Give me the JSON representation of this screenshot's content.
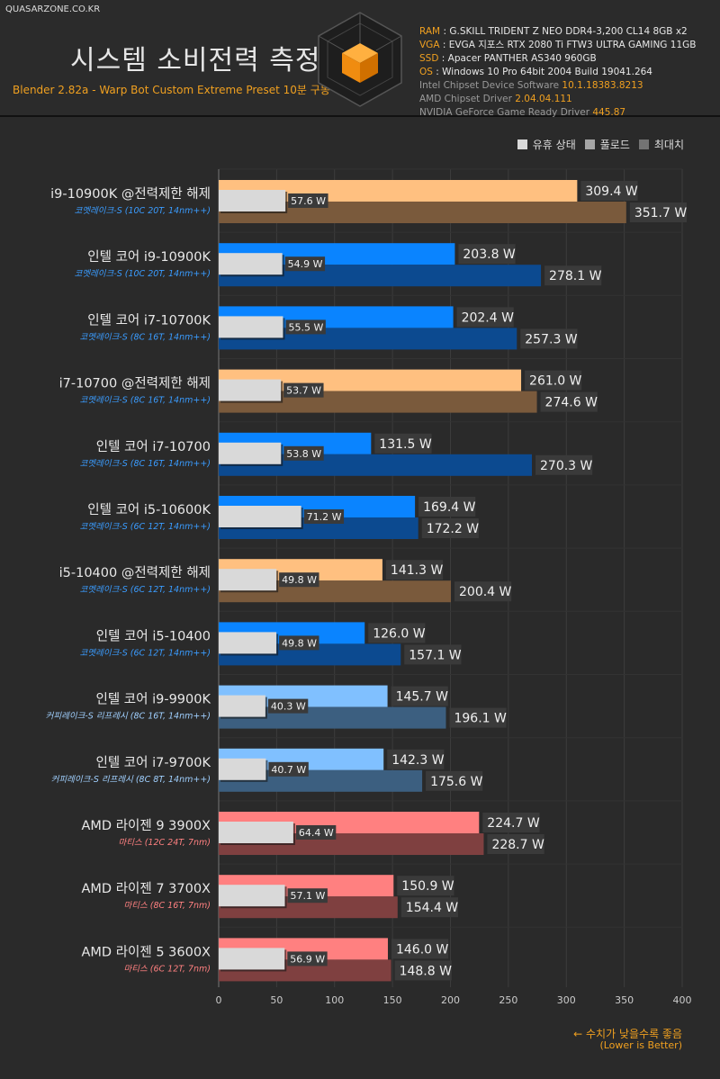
{
  "header": {
    "site": "QUASARZONE.CO.KR",
    "title": "시스템 소비전력 측정",
    "subtitle": "Blender 2.82a - Warp Bot Custom Extreme Preset 10분 구동",
    "specs": [
      {
        "key": "RAM",
        "sep": " : ",
        "value": "G.SKILL TRIDENT Z NEO DDR4-3,200 CL14 8GB x2"
      },
      {
        "key": "VGA",
        "sep": " : ",
        "value": "EVGA 지포스 RTX 2080 Ti FTW3 ULTRA GAMING 11GB"
      },
      {
        "key": "SSD",
        "sep": " : ",
        "value": "Apacer PANTHER AS340 960GB"
      },
      {
        "key": "OS",
        "sep": " : ",
        "value": "Windows 10 Pro 64bit 2004 Build 19041.264"
      }
    ],
    "drivers": [
      {
        "label": "Intel Chipset Device Software ",
        "version": "10.1.18383.8213"
      },
      {
        "label": "AMD Chipset Driver ",
        "version": "2.04.04.111"
      },
      {
        "label": "NVIDIA GeForce Game Ready Driver ",
        "version": "445.87"
      }
    ]
  },
  "legend": {
    "items": [
      {
        "label": "유휴 상태",
        "color": "#d9d9d9"
      },
      {
        "label": "풀로드",
        "color": "#a6a6a6"
      },
      {
        "label": "최대치",
        "color": "#737373"
      }
    ]
  },
  "notes": {
    "lower_better": "← 수치가 낮을수록 좋음",
    "lower_better_en": "(Lower is Better)"
  },
  "chart_data": {
    "type": "bar",
    "orientation": "horizontal",
    "xlim": [
      0,
      400
    ],
    "xticks": [
      0,
      50,
      100,
      150,
      200,
      250,
      300,
      350,
      400
    ],
    "grid": true,
    "legend_position": "top-right",
    "series_names": [
      "유휴 상태",
      "풀로드",
      "최대치"
    ],
    "unit": " W",
    "categories": [
      {
        "name": "i9-10900K @전력제한 해제",
        "sub": "코멧레이크-S (10C 20T, 14nm++)",
        "idle": 57.6,
        "load": 309.4,
        "max": 351.7,
        "load_color": "#ffc080",
        "max_color": "#7a5a3c",
        "sub_color": "#3a9cff"
      },
      {
        "name": "인텔 코어 i9-10900K",
        "sub": "코멧레이크-S (10C 20T, 14nm++)",
        "idle": 54.9,
        "load": 203.8,
        "max": 278.1,
        "load_color": "#0a84ff",
        "max_color": "#0c4a90",
        "sub_color": "#3a9cff"
      },
      {
        "name": "인텔 코어 i7-10700K",
        "sub": "코멧레이크-S (8C 16T, 14nm++)",
        "idle": 55.5,
        "load": 202.4,
        "max": 257.3,
        "load_color": "#0a84ff",
        "max_color": "#0c4a90",
        "sub_color": "#3a9cff"
      },
      {
        "name": "i7-10700 @전력제한 해제",
        "sub": "코멧레이크-S (8C 16T, 14nm++)",
        "idle": 53.7,
        "load": 261.0,
        "max": 274.6,
        "load_color": "#ffc080",
        "max_color": "#7a5a3c",
        "sub_color": "#3a9cff"
      },
      {
        "name": "인텔 코어 i7-10700",
        "sub": "코멧레이크-S (8C 16T, 14nm++)",
        "idle": 53.8,
        "load": 131.5,
        "max": 270.3,
        "load_color": "#0a84ff",
        "max_color": "#0c4a90",
        "sub_color": "#3a9cff"
      },
      {
        "name": "인텔 코어 i5-10600K",
        "sub": "코멧레이크-S (6C 12T, 14nm++)",
        "idle": 71.2,
        "load": 169.4,
        "max": 172.2,
        "load_color": "#0a84ff",
        "max_color": "#0c4a90",
        "sub_color": "#3a9cff"
      },
      {
        "name": "i5-10400 @전력제한 해제",
        "sub": "코멧레이크-S (6C 12T, 14nm++)",
        "idle": 49.8,
        "load": 141.3,
        "max": 200.4,
        "load_color": "#ffc080",
        "max_color": "#7a5a3c",
        "sub_color": "#3a9cff"
      },
      {
        "name": "인텔 코어 i5-10400",
        "sub": "코멧레이크-S (6C 12T, 14nm++)",
        "idle": 49.8,
        "load": 126.0,
        "max": 157.1,
        "load_color": "#0a84ff",
        "max_color": "#0c4a90",
        "sub_color": "#3a9cff"
      },
      {
        "name": "인텔 코어 i9-9900K",
        "sub": "커피레이크-S 리프레시 (8C 16T, 14nm++)",
        "idle": 40.3,
        "load": 145.7,
        "max": 196.1,
        "load_color": "#80c0ff",
        "max_color": "#3c5f80",
        "sub_color": "#a0d0ff"
      },
      {
        "name": "인텔 코어 i7-9700K",
        "sub": "커피레이크-S 리프레시 (8C 8T, 14nm++)",
        "idle": 40.7,
        "load": 142.3,
        "max": 175.6,
        "load_color": "#80c0ff",
        "max_color": "#3c5f80",
        "sub_color": "#a0d0ff"
      },
      {
        "name": "AMD 라이젠 9 3900X",
        "sub": "마티스 (12C 24T, 7nm)",
        "idle": 64.4,
        "load": 224.7,
        "max": 228.7,
        "load_color": "#ff8080",
        "max_color": "#7f4040",
        "sub_color": "#ff8080"
      },
      {
        "name": "AMD 라이젠 7 3700X",
        "sub": "마티스 (8C 16T, 7nm)",
        "idle": 57.1,
        "load": 150.9,
        "max": 154.4,
        "load_color": "#ff8080",
        "max_color": "#7f4040",
        "sub_color": "#ff8080"
      },
      {
        "name": "AMD 라이젠 5 3600X",
        "sub": "마티스 (6C 12T, 7nm)",
        "idle": 56.9,
        "load": 146.0,
        "max": 148.8,
        "load_color": "#ff8080",
        "max_color": "#7f4040",
        "sub_color": "#ff8080"
      }
    ]
  }
}
